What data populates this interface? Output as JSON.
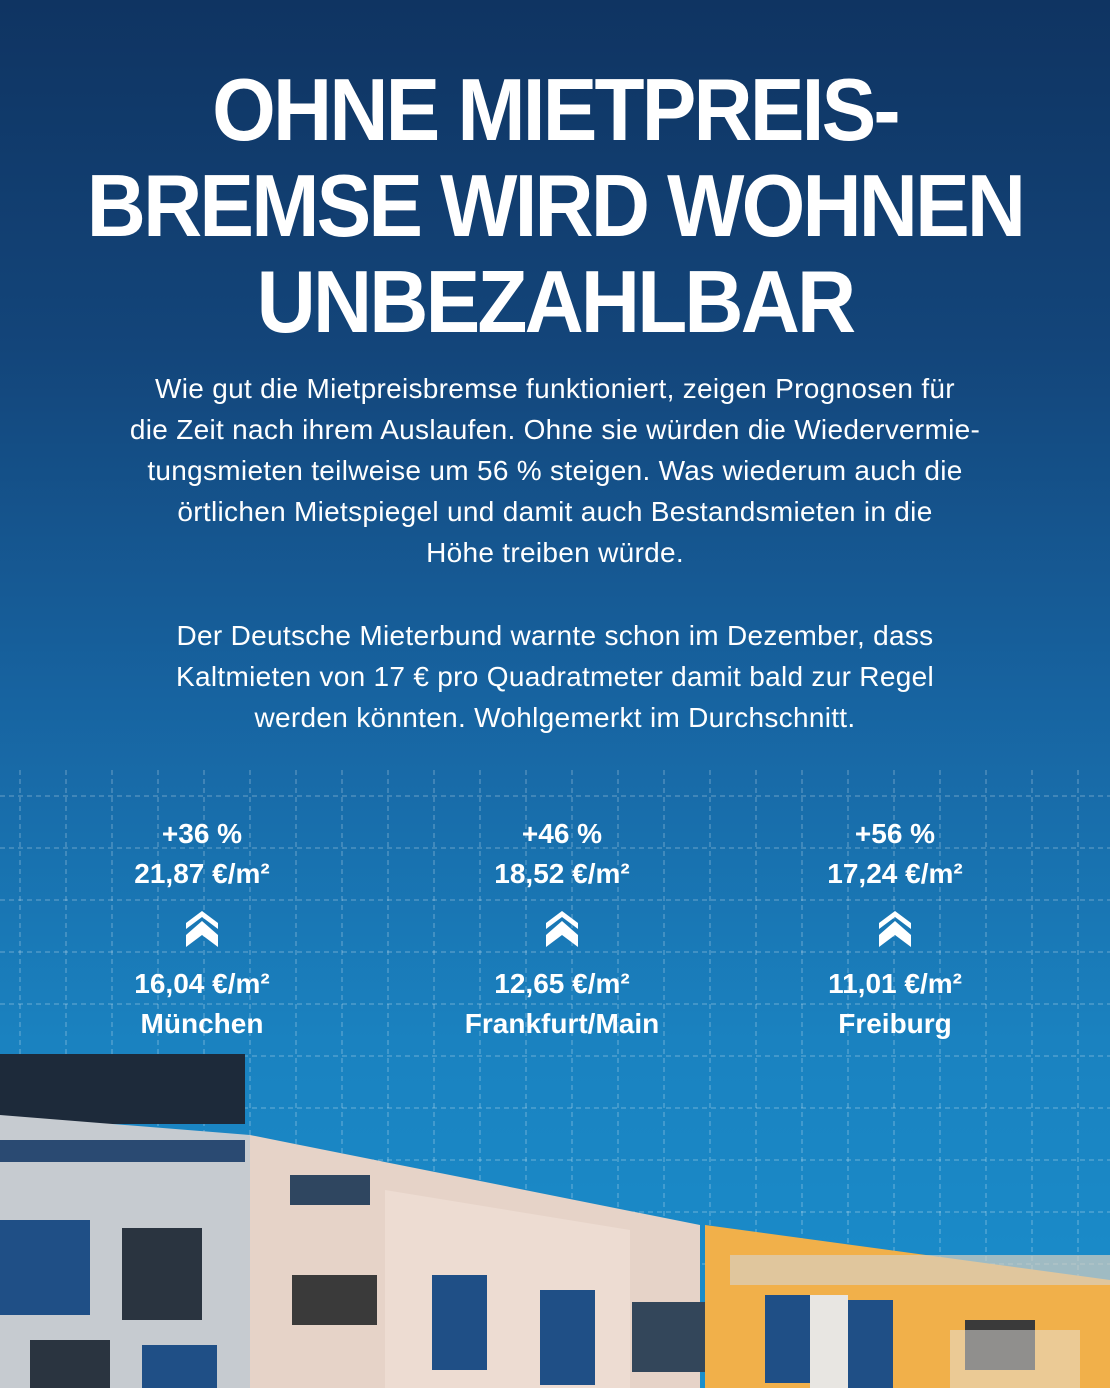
{
  "title": {
    "lines": [
      "OHNE MIETPREIS-",
      "BREMSE WIRD WOHNEN",
      "UNBEZAHLBAR"
    ]
  },
  "intro": {
    "lines": [
      "Wie gut die Mietpreisbremse funktioniert, zeigen Prognosen für",
      "die Zeit nach ihrem Auslaufen. Ohne sie würden die Wiedervermie-",
      "tungsmieten teilweise um 56 % steigen. Was wiederum auch die",
      "örtlichen Mietspiegel und damit auch Bestandsmieten in die",
      "Höhe treiben würde."
    ]
  },
  "note": {
    "lines": [
      "Der Deutsche Mieterbund warnte schon im Dezember, dass",
      "Kaltmieten von 17 € pro Quadratmeter damit bald zur Regel",
      "werden könnten. Wohlgemerkt im Durchschnitt."
    ]
  },
  "stats": [
    {
      "increase": "+36 %",
      "future": "21,87 €/m²",
      "current": "16,04 €/m²",
      "city": "München",
      "icon": "double-chevron-up-icon"
    },
    {
      "increase": "+46 %",
      "future": "18,52 €/m²",
      "current": "12,65 €/m²",
      "city": "Frankfurt/Main",
      "icon": "double-chevron-up-icon"
    },
    {
      "increase": "+56 %",
      "future": "17,24 €/m²",
      "current": "11,01 €/m²",
      "city": "Freiburg",
      "icon": "double-chevron-up-icon"
    }
  ],
  "colors": {
    "bg_top": "#0f3462",
    "bg_bottom": "#1a8fcd",
    "text": "#ffffff",
    "facade_grey": "#c9ccd0",
    "facade_pink": "#e9d6cc",
    "facade_yellow": "#f2b34a"
  }
}
